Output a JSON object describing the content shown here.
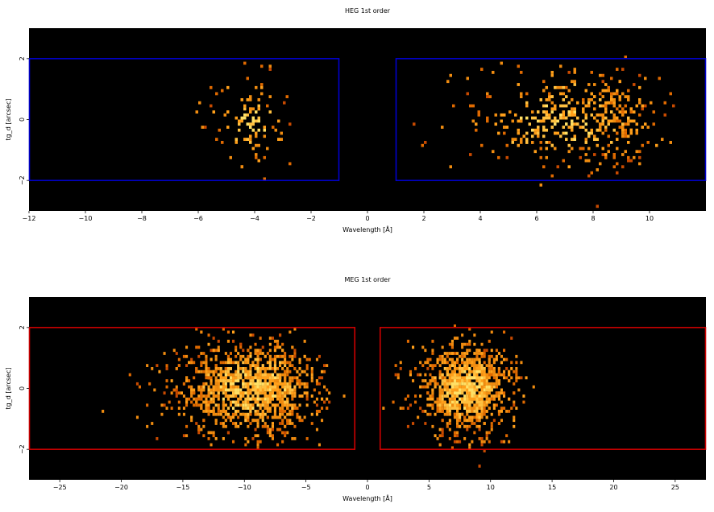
{
  "chart_data": [
    {
      "type": "heatmap",
      "title": "HEG 1st order",
      "xlabel": "Wavelength [Å]",
      "ylabel": "tg_d [arcsec]",
      "xlim": [
        -12,
        12
      ],
      "ylim": [
        -3,
        3
      ],
      "xticks": [
        -12,
        -10,
        -8,
        -6,
        -4,
        -2,
        0,
        2,
        4,
        6,
        8,
        10
      ],
      "xtick_labels": [
        "−12",
        "−10",
        "−8",
        "−6",
        "−4",
        "−2",
        "0",
        "2",
        "4",
        "6",
        "8",
        "10"
      ],
      "yticks": [
        -2,
        0,
        2
      ],
      "ytick_labels": [
        "−2",
        "0",
        "2"
      ],
      "background": "#000000",
      "region_color": "#0000cc",
      "regions": [
        {
          "x0": -12,
          "x1": -1,
          "y0": -2,
          "y1": 2
        },
        {
          "x0": 1,
          "x1": 12,
          "y0": -2,
          "y1": 2
        }
      ],
      "clusters": [
        {
          "xmin": -6.2,
          "xmax": -2.0,
          "center": -4.2,
          "n": 110,
          "peaks": [
            -4.0
          ]
        },
        {
          "xmin": 1.5,
          "xmax": 10.8,
          "center": 6.8,
          "n": 480,
          "peaks": [
            6.6,
            8.4,
            9.0
          ]
        }
      ],
      "bin": {
        "dx": 0.1,
        "dy": 0.1
      }
    },
    {
      "type": "heatmap",
      "title": "MEG 1st order",
      "xlabel": "Wavelength [Å]",
      "ylabel": "tg_d [arcsec]",
      "xlim": [
        -27.5,
        27.5
      ],
      "ylim": [
        -3,
        3
      ],
      "xticks": [
        -25,
        -20,
        -15,
        -10,
        -5,
        0,
        5,
        10,
        15,
        20,
        25
      ],
      "xtick_labels": [
        "−25",
        "−20",
        "−15",
        "−10",
        "−5",
        "0",
        "5",
        "10",
        "15",
        "20",
        "25"
      ],
      "yticks": [
        -2,
        0,
        2
      ],
      "ytick_labels": [
        "−2",
        "0",
        "2"
      ],
      "background": "#000000",
      "region_color": "#cc0000",
      "regions": [
        {
          "x0": -27.5,
          "x1": -1,
          "y0": -2,
          "y1": 2
        },
        {
          "x0": 1,
          "x1": 27.5,
          "y0": -2,
          "y1": 2
        }
      ],
      "clusters": [
        {
          "xmin": -20,
          "xmax": -3,
          "center": -9.5,
          "n": 1300,
          "peaks": [
            -9.0,
            -7.2,
            -12.5
          ]
        },
        {
          "xmin": 2,
          "xmax": 13.5,
          "center": 8.0,
          "n": 1100,
          "peaks": [
            6.6,
            8.4,
            9.2
          ]
        }
      ],
      "bin": {
        "dx": 0.2,
        "dy": 0.1
      }
    }
  ]
}
